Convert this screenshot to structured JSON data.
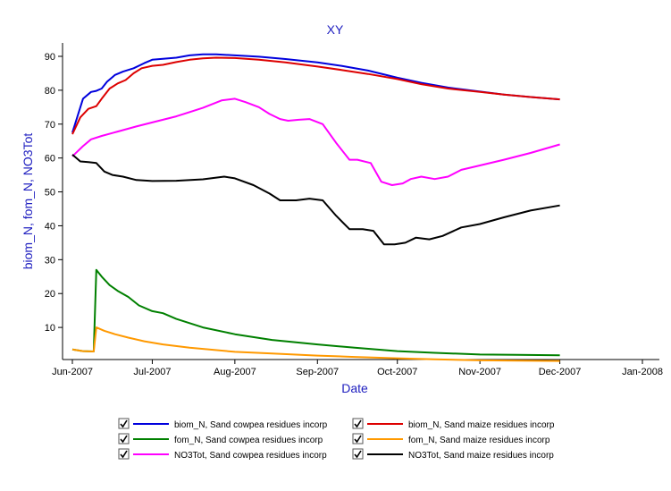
{
  "chart_data": {
    "type": "line",
    "title": "XY",
    "xlabel": "Date",
    "ylabel": "biom_N, fom_N, NO3Tot",
    "x_type": "date",
    "xlim": [
      "2007-06-01",
      "2008-01-01"
    ],
    "ylim": [
      0,
      93
    ],
    "x_ticks": [
      {
        "date": "2007-06-01",
        "label": "Jun-2007"
      },
      {
        "date": "2007-07-01",
        "label": "Jul-2007"
      },
      {
        "date": "2007-08-01",
        "label": "Aug-2007"
      },
      {
        "date": "2007-09-01",
        "label": "Sep-2007"
      },
      {
        "date": "2007-10-01",
        "label": "Oct-2007"
      },
      {
        "date": "2007-11-01",
        "label": "Nov-2007"
      },
      {
        "date": "2007-12-01",
        "label": "Dec-2007"
      },
      {
        "date": "2008-01-01",
        "label": "Jan-2008"
      }
    ],
    "y_ticks": [
      10,
      20,
      30,
      40,
      50,
      60,
      70,
      80,
      90
    ],
    "grid": false,
    "legend_position": "bottom",
    "series": [
      {
        "name": "biom_N, Sand cowpea residues incorp",
        "color": "#0000dd",
        "x": [
          "2007-06-01",
          "2007-06-05",
          "2007-06-08",
          "2007-06-10",
          "2007-06-12",
          "2007-06-14",
          "2007-06-17",
          "2007-06-20",
          "2007-06-24",
          "2007-06-28",
          "2007-07-01",
          "2007-07-05",
          "2007-07-10",
          "2007-07-15",
          "2007-07-20",
          "2007-07-25",
          "2007-08-01",
          "2007-08-10",
          "2007-08-20",
          "2007-09-01",
          "2007-09-10",
          "2007-09-20",
          "2007-10-01",
          "2007-10-10",
          "2007-10-20",
          "2007-11-01",
          "2007-11-10",
          "2007-11-20",
          "2007-12-01"
        ],
        "y": [
          67.5,
          77.5,
          79.5,
          79.8,
          80.5,
          82.5,
          84.5,
          85.5,
          86.5,
          88.0,
          89.0,
          89.3,
          89.6,
          90.3,
          90.6,
          90.6,
          90.3,
          89.9,
          89.2,
          88.2,
          87.2,
          85.8,
          83.7,
          82.2,
          80.8,
          79.6,
          78.7,
          78.0,
          77.3
        ]
      },
      {
        "name": "biom_N, Sand maize residues incorp",
        "color": "#dd0000",
        "x": [
          "2007-06-01",
          "2007-06-04",
          "2007-06-07",
          "2007-06-10",
          "2007-06-12",
          "2007-06-15",
          "2007-06-18",
          "2007-06-21",
          "2007-06-24",
          "2007-06-27",
          "2007-07-01",
          "2007-07-05",
          "2007-07-10",
          "2007-07-15",
          "2007-07-20",
          "2007-07-25",
          "2007-08-01",
          "2007-08-10",
          "2007-08-20",
          "2007-09-01",
          "2007-09-10",
          "2007-09-20",
          "2007-10-01",
          "2007-10-10",
          "2007-10-20",
          "2007-11-01",
          "2007-11-10",
          "2007-11-20",
          "2007-12-01"
        ],
        "y": [
          67.0,
          72.0,
          74.5,
          75.3,
          77.5,
          80.5,
          82.0,
          83.0,
          85.0,
          86.5,
          87.2,
          87.5,
          88.3,
          89.0,
          89.4,
          89.6,
          89.5,
          89.0,
          88.2,
          87.0,
          86.0,
          84.8,
          83.3,
          81.8,
          80.5,
          79.5,
          78.7,
          78.0,
          77.3
        ]
      },
      {
        "name": "fom_N, Sand cowpea residues incorp",
        "color": "#008000",
        "x": [
          "2007-06-01",
          "2007-06-05",
          "2007-06-09",
          "2007-06-10",
          "2007-06-12",
          "2007-06-15",
          "2007-06-18",
          "2007-06-22",
          "2007-06-26",
          "2007-07-01",
          "2007-07-05",
          "2007-07-10",
          "2007-07-20",
          "2007-08-01",
          "2007-08-15",
          "2007-09-01",
          "2007-09-15",
          "2007-10-01",
          "2007-10-15",
          "2007-11-01",
          "2007-11-15",
          "2007-12-01"
        ],
        "y": [
          3.5,
          3.0,
          2.9,
          27.0,
          25.0,
          22.5,
          20.8,
          19.0,
          16.5,
          14.8,
          14.2,
          12.5,
          10.0,
          8.0,
          6.3,
          5.0,
          4.0,
          3.0,
          2.5,
          2.0,
          1.9,
          1.8
        ]
      },
      {
        "name": "fom_N, Sand maize residues incorp",
        "color": "#ff9900",
        "x": [
          "2007-06-01",
          "2007-06-05",
          "2007-06-09",
          "2007-06-10",
          "2007-06-13",
          "2007-06-17",
          "2007-06-22",
          "2007-06-28",
          "2007-07-05",
          "2007-07-15",
          "2007-08-01",
          "2007-08-15",
          "2007-09-01",
          "2007-09-15",
          "2007-10-01",
          "2007-10-15",
          "2007-11-01",
          "2007-11-15",
          "2007-12-01"
        ],
        "y": [
          3.5,
          3.0,
          2.9,
          10.0,
          9.0,
          8.0,
          7.0,
          5.9,
          5.0,
          4.0,
          2.8,
          2.3,
          1.7,
          1.3,
          0.9,
          0.6,
          0.3,
          0.2,
          0.1
        ]
      },
      {
        "name": "NO3Tot, Sand cowpea residues incorp",
        "color": "#ff00ff",
        "x": [
          "2007-06-01",
          "2007-06-05",
          "2007-06-08",
          "2007-06-12",
          "2007-06-18",
          "2007-06-25",
          "2007-07-01",
          "2007-07-10",
          "2007-07-20",
          "2007-07-27",
          "2007-08-01",
          "2007-08-05",
          "2007-08-10",
          "2007-08-14",
          "2007-08-18",
          "2007-08-21",
          "2007-08-25",
          "2007-08-29",
          "2007-09-03",
          "2007-09-08",
          "2007-09-13",
          "2007-09-16",
          "2007-09-21",
          "2007-09-25",
          "2007-09-29",
          "2007-10-03",
          "2007-10-06",
          "2007-10-10",
          "2007-10-15",
          "2007-10-20",
          "2007-10-25",
          "2007-11-01",
          "2007-11-10",
          "2007-11-20",
          "2007-12-01"
        ],
        "y": [
          60.5,
          63.5,
          65.5,
          66.5,
          67.8,
          69.3,
          70.5,
          72.3,
          74.8,
          77.0,
          77.5,
          76.5,
          75.0,
          73.0,
          71.5,
          71.0,
          71.3,
          71.5,
          70.0,
          64.5,
          59.5,
          59.5,
          58.5,
          53.0,
          52.0,
          52.5,
          53.8,
          54.5,
          53.8,
          54.5,
          56.5,
          57.8,
          59.5,
          61.5,
          64.0
        ]
      },
      {
        "name": "NO3Tot, Sand maize residues incorp",
        "color": "#000000",
        "x": [
          "2007-06-01",
          "2007-06-04",
          "2007-06-07",
          "2007-06-10",
          "2007-06-13",
          "2007-06-16",
          "2007-06-20",
          "2007-06-25",
          "2007-07-01",
          "2007-07-10",
          "2007-07-20",
          "2007-07-28",
          "2007-08-01",
          "2007-08-08",
          "2007-08-14",
          "2007-08-18",
          "2007-08-24",
          "2007-08-29",
          "2007-09-03",
          "2007-09-08",
          "2007-09-13",
          "2007-09-18",
          "2007-09-22",
          "2007-09-26",
          "2007-09-30",
          "2007-10-04",
          "2007-10-08",
          "2007-10-13",
          "2007-10-18",
          "2007-10-25",
          "2007-11-01",
          "2007-11-10",
          "2007-11-20",
          "2007-12-01"
        ],
        "y": [
          61.0,
          59.0,
          58.8,
          58.5,
          56.0,
          55.0,
          54.5,
          53.5,
          53.2,
          53.3,
          53.7,
          54.5,
          54.0,
          52.0,
          49.5,
          47.5,
          47.5,
          48.0,
          47.5,
          43.0,
          39.0,
          39.0,
          38.5,
          34.5,
          34.5,
          35.0,
          36.5,
          36.0,
          37.0,
          39.5,
          40.5,
          42.5,
          44.5,
          46.0
        ]
      }
    ]
  }
}
